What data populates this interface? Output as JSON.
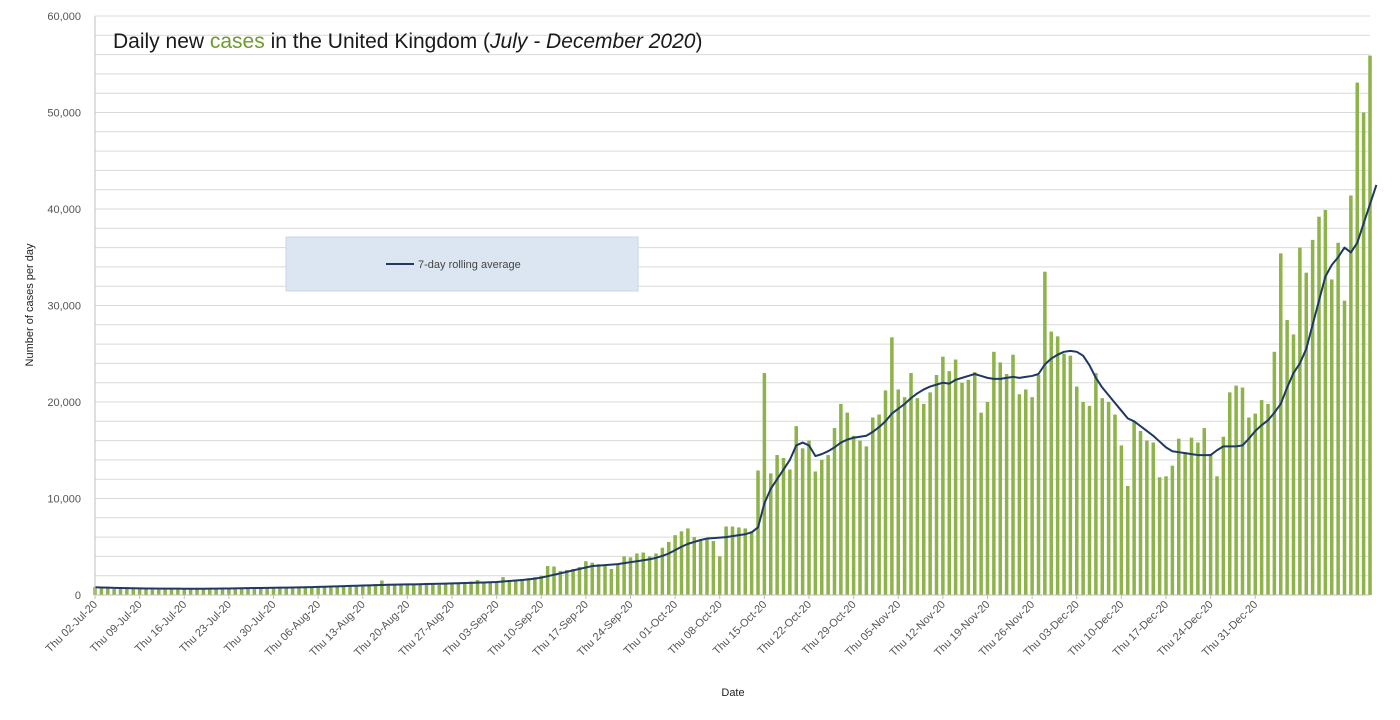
{
  "chart_data": {
    "type": "bar",
    "title": {
      "prefix": "Daily new ",
      "highlight": "cases",
      "middle": " in the United Kingdom (",
      "italic": "July - December 2020",
      "suffix": ")"
    },
    "xlabel": "Date",
    "ylabel": "Number of cases per day",
    "ylim": [
      0,
      60000
    ],
    "yticks": [
      0,
      10000,
      20000,
      30000,
      40000,
      50000,
      60000
    ],
    "ytick_labels": [
      "0",
      "10,000",
      "20,000",
      "30,000",
      "40,000",
      "50,000",
      "60,000"
    ],
    "grid": true,
    "x_start": "2020-07-02",
    "x_end": "2020-12-31",
    "x_tick_labels": [
      "Thu 02-Jul-20",
      "Thu 09-Jul-20",
      "Thu 16-Jul-20",
      "Thu 23-Jul-20",
      "Thu 30-Jul-20",
      "Thu 06-Aug-20",
      "Thu 13-Aug-20",
      "Thu 20-Aug-20",
      "Thu 27-Aug-20",
      "Thu 03-Sep-20",
      "Thu 10-Sep-20",
      "Thu 17-Sep-20",
      "Thu 24-Sep-20",
      "Thu 01-Oct-20",
      "Thu 08-Oct-20",
      "Thu 15-Oct-20",
      "Thu 22-Oct-20",
      "Thu 29-Oct-20",
      "Thu 05-Nov-20",
      "Thu 12-Nov-20",
      "Thu 19-Nov-20",
      "Thu 26-Nov-20",
      "Thu 03-Dec-20",
      "Thu 10-Dec-20",
      "Thu 17-Dec-20",
      "Thu 24-Dec-20",
      "Thu 31-Dec-20"
    ],
    "legend": {
      "placement": "upper-left",
      "entries": [
        "7-day rolling average"
      ]
    },
    "colors": {
      "bars": "#8db34a",
      "line": "#1f3864",
      "legend_bg": "#dce6f2",
      "title_highlight": "#6f9a2f"
    },
    "series": [
      {
        "type": "bar",
        "values": [
          820,
          750,
          680,
          620,
          640,
          700,
          780,
          620,
          580,
          560,
          550,
          580,
          640,
          680,
          660,
          650,
          640,
          620,
          660,
          720,
          760,
          720,
          700,
          680,
          700,
          760,
          780,
          740,
          760,
          780,
          800,
          780,
          820,
          850,
          880,
          880,
          900,
          920,
          940,
          950,
          960,
          980,
          1000,
          1050,
          1100,
          1500,
          1150,
          1080,
          1050,
          1100,
          1150,
          1200,
          1250,
          1100,
          1050,
          1100,
          1150,
          1250,
          1300,
          1400,
          1550,
          1350,
          1300,
          1400,
          1850,
          1450,
          1500,
          1600,
          1750,
          1850,
          2000,
          3000,
          2950,
          2500,
          2600,
          2700,
          2900,
          3500,
          3350,
          3200,
          3100,
          2700,
          3200,
          4000,
          3900,
          4300,
          4400,
          4000,
          4300,
          4900,
          5500,
          6200,
          6600,
          6900,
          6000,
          5700,
          5800,
          5600,
          4000,
          7100,
          7100,
          7000,
          6900,
          6600,
          12900,
          23000,
          12600,
          14500,
          14200,
          13000,
          17500,
          15200,
          16000,
          12800,
          14000,
          14500,
          17300,
          19800,
          18900,
          16500,
          16000,
          15400,
          18400,
          18700,
          21200,
          26700,
          21300,
          20500,
          23000,
          20400,
          19800,
          21000,
          22800,
          24700,
          23200,
          24400,
          22000,
          22300,
          23100,
          18900,
          20000,
          25200,
          24100,
          22900,
          24900,
          20800,
          21300,
          20500,
          22800,
          33500,
          27300,
          26800,
          25000,
          24800,
          21600,
          20000,
          19600,
          23000,
          20400,
          20000,
          18700,
          15500,
          11300,
          18000,
          17000,
          16000,
          15800,
          12200,
          12300,
          13400,
          16200,
          14800,
          16300,
          15800,
          17300,
          14600,
          12300,
          16400,
          21000,
          21700,
          21500,
          18400,
          18800,
          20200,
          19800,
          25200,
          35400,
          28500,
          27000,
          36000,
          33400,
          36800,
          39200,
          39900,
          32700,
          36500,
          30500,
          41400,
          53100,
          50000,
          55900
        ]
      },
      {
        "type": "line",
        "name": "7-day rolling average",
        "values": [
          800,
          780,
          760,
          740,
          720,
          710,
          700,
          690,
          680,
          670,
          660,
          660,
          660,
          660,
          650,
          650,
          650,
          650,
          660,
          660,
          670,
          680,
          690,
          700,
          710,
          720,
          730,
          740,
          750,
          760,
          770,
          780,
          790,
          800,
          820,
          840,
          860,
          880,
          900,
          920,
          940,
          960,
          980,
          1000,
          1020,
          1040,
          1060,
          1080,
          1090,
          1100,
          1100,
          1120,
          1140,
          1150,
          1160,
          1180,
          1200,
          1220,
          1240,
          1260,
          1280,
          1300,
          1320,
          1350,
          1400,
          1450,
          1500,
          1560,
          1620,
          1700,
          1800,
          1950,
          2100,
          2250,
          2400,
          2550,
          2700,
          2850,
          3000,
          3050,
          3100,
          3150,
          3200,
          3300,
          3400,
          3500,
          3600,
          3700,
          3850,
          4050,
          4300,
          4650,
          5000,
          5300,
          5500,
          5700,
          5850,
          5900,
          5950,
          6000,
          6100,
          6200,
          6300,
          6500,
          7000,
          9500,
          11000,
          12000,
          13000,
          14000,
          15500,
          15800,
          15500,
          14400,
          14600,
          14900,
          15300,
          15800,
          16100,
          16300,
          16400,
          16500,
          16900,
          17400,
          18000,
          18800,
          19300,
          19800,
          20400,
          20900,
          21300,
          21600,
          21800,
          22000,
          21900,
          22300,
          22500,
          22700,
          22900,
          22700,
          22500,
          22400,
          22400,
          22500,
          22600,
          22500,
          22600,
          22700,
          22900,
          23900,
          24500,
          24900,
          25200,
          25300,
          25200,
          24800,
          23800,
          22500,
          21500,
          20700,
          19900,
          19100,
          18300,
          18000,
          17500,
          17000,
          16500,
          15900,
          15300,
          14900,
          14800,
          14700,
          14600,
          14500,
          14500,
          14500,
          15000,
          15400,
          15400,
          15400,
          15500,
          16200,
          17000,
          17600,
          18100,
          18900,
          19800,
          21500,
          23000,
          24000,
          25500,
          28000,
          30500,
          33000,
          34200,
          35000,
          36000,
          35500,
          36500,
          38500,
          40500,
          42500
        ]
      }
    ]
  }
}
